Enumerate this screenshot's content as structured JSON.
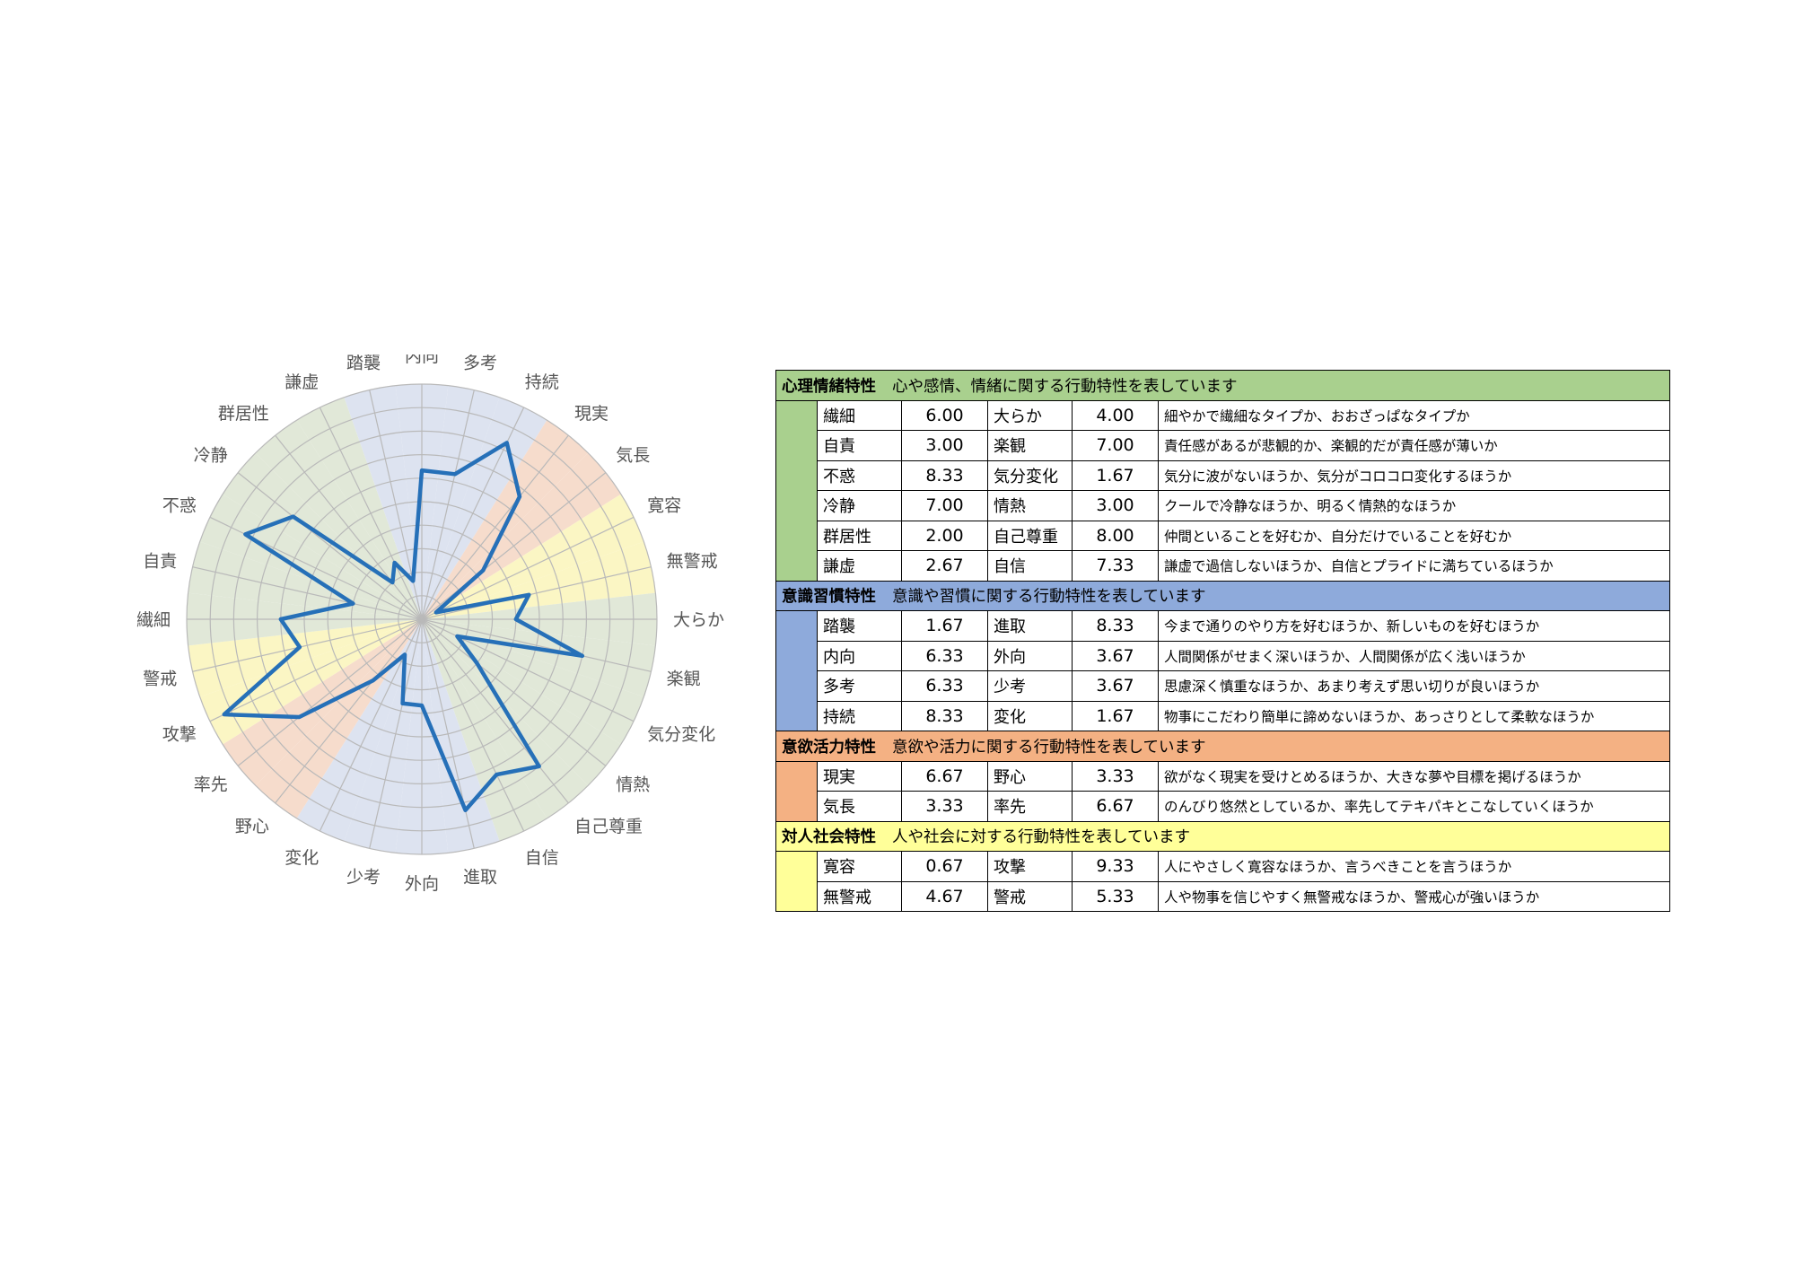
{
  "chart_data": {
    "type": "radar",
    "axes": [
      "内向",
      "多考",
      "持続",
      "現実",
      "気長",
      "寛容",
      "無警戒",
      "大らか",
      "楽観",
      "気分変化",
      "情熱",
      "自己尊重",
      "自信",
      "進取",
      "外向",
      "少考",
      "変化",
      "野心",
      "率先",
      "攻撃",
      "警戒",
      "繊細",
      "自責",
      "不惑",
      "冷静",
      "群居性",
      "謙虚",
      "踏襲"
    ],
    "values": [
      6.33,
      6.33,
      8.33,
      6.67,
      3.33,
      0.67,
      4.67,
      4.0,
      7.0,
      1.67,
      3.0,
      8.0,
      7.33,
      8.33,
      3.67,
      3.67,
      1.67,
      3.33,
      6.67,
      9.33,
      5.33,
      6.0,
      3.0,
      8.33,
      7.0,
      2.0,
      2.67,
      1.67
    ],
    "range": [
      0,
      10
    ],
    "rings": 10,
    "line_color": "#2670b8",
    "sector_colors": [
      "#dde3f0",
      "#dde3f0",
      "#dde3f0",
      "#f6dccc",
      "#f6dccc",
      "#fbf6c4",
      "#fbf6c4",
      "#e1e8d8",
      "#e1e8d8",
      "#e1e8d8",
      "#e1e8d8",
      "#e1e8d8",
      "#e1e8d8",
      "#dde3f0",
      "#dde3f0",
      "#dde3f0",
      "#dde3f0",
      "#f6dccc",
      "#f6dccc",
      "#fbf6c4",
      "#fbf6c4",
      "#e1e8d8",
      "#e1e8d8",
      "#e1e8d8",
      "#e1e8d8",
      "#e1e8d8",
      "#e1e8d8",
      "#dde3f0"
    ],
    "grid": true
  },
  "table": {
    "groups": [
      {
        "title": "心理情緒特性",
        "description": "心や感情、情緒に関する行動特性を表しています",
        "color": "#a9d08e",
        "rows": [
          {
            "left": "繊細",
            "left_value": "6.00",
            "right": "大らか",
            "right_value": "4.00",
            "text": "細やかで繊細なタイプか、おおざっぱなタイプか"
          },
          {
            "left": "自責",
            "left_value": "3.00",
            "right": "楽観",
            "right_value": "7.00",
            "text": "責任感があるが悲観的か、楽観的だが責任感が薄いか"
          },
          {
            "left": "不惑",
            "left_value": "8.33",
            "right": "気分変化",
            "right_value": "1.67",
            "text": "気分に波がないほうか、気分がコロコロ変化するほうか"
          },
          {
            "left": "冷静",
            "left_value": "7.00",
            "right": "情熱",
            "right_value": "3.00",
            "text": "クールで冷静なほうか、明るく情熱的なほうか"
          },
          {
            "left": "群居性",
            "left_value": "2.00",
            "right": "自己尊重",
            "right_value": "8.00",
            "text": "仲間といることを好むか、自分だけでいることを好むか"
          },
          {
            "left": "謙虚",
            "left_value": "2.67",
            "right": "自信",
            "right_value": "7.33",
            "text": "謙虚で過信しないほうか、自信とプライドに満ちているほうか"
          }
        ]
      },
      {
        "title": "意識習慣特性",
        "description": "意識や習慣に関する行動特性を表しています",
        "color": "#8eaadb",
        "rows": [
          {
            "left": "踏襲",
            "left_value": "1.67",
            "right": "進取",
            "right_value": "8.33",
            "text": "今まで通りのやり方を好むほうか、新しいものを好むほうか"
          },
          {
            "left": "内向",
            "left_value": "6.33",
            "right": "外向",
            "right_value": "3.67",
            "text": "人間関係がせまく深いほうか、人間関係が広く浅いほうか"
          },
          {
            "left": "多考",
            "left_value": "6.33",
            "right": "少考",
            "right_value": "3.67",
            "text": "思慮深く慎重なほうか、あまり考えず思い切りが良いほうか"
          },
          {
            "left": "持続",
            "left_value": "8.33",
            "right": "変化",
            "right_value": "1.67",
            "text": "物事にこだわり簡単に諦めないほうか、あっさりとして柔軟なほうか"
          }
        ]
      },
      {
        "title": "意欲活力特性",
        "description": "意欲や活力に関する行動特性を表しています",
        "color": "#f4b183",
        "rows": [
          {
            "left": "現実",
            "left_value": "6.67",
            "right": "野心",
            "right_value": "3.33",
            "text": "欲がなく現実を受けとめるほうか、大きな夢や目標を掲げるほうか"
          },
          {
            "left": "気長",
            "left_value": "3.33",
            "right": "率先",
            "right_value": "6.67",
            "text": "のんびり悠然としているか、率先してテキパキとこなしていくほうか"
          }
        ]
      },
      {
        "title": "対人社会特性",
        "description": "人や社会に対する行動特性を表しています",
        "color": "#ffff99",
        "rows": [
          {
            "left": "寛容",
            "left_value": "0.67",
            "right": "攻撃",
            "right_value": "9.33",
            "text": "人にやさしく寛容なほうか、言うべきことを言うほうか"
          },
          {
            "left": "無警戒",
            "left_value": "4.67",
            "right": "警戒",
            "right_value": "5.33",
            "text": "人や物事を信じやすく無警戒なほうか、警戒心が強いほうか"
          }
        ]
      }
    ]
  }
}
